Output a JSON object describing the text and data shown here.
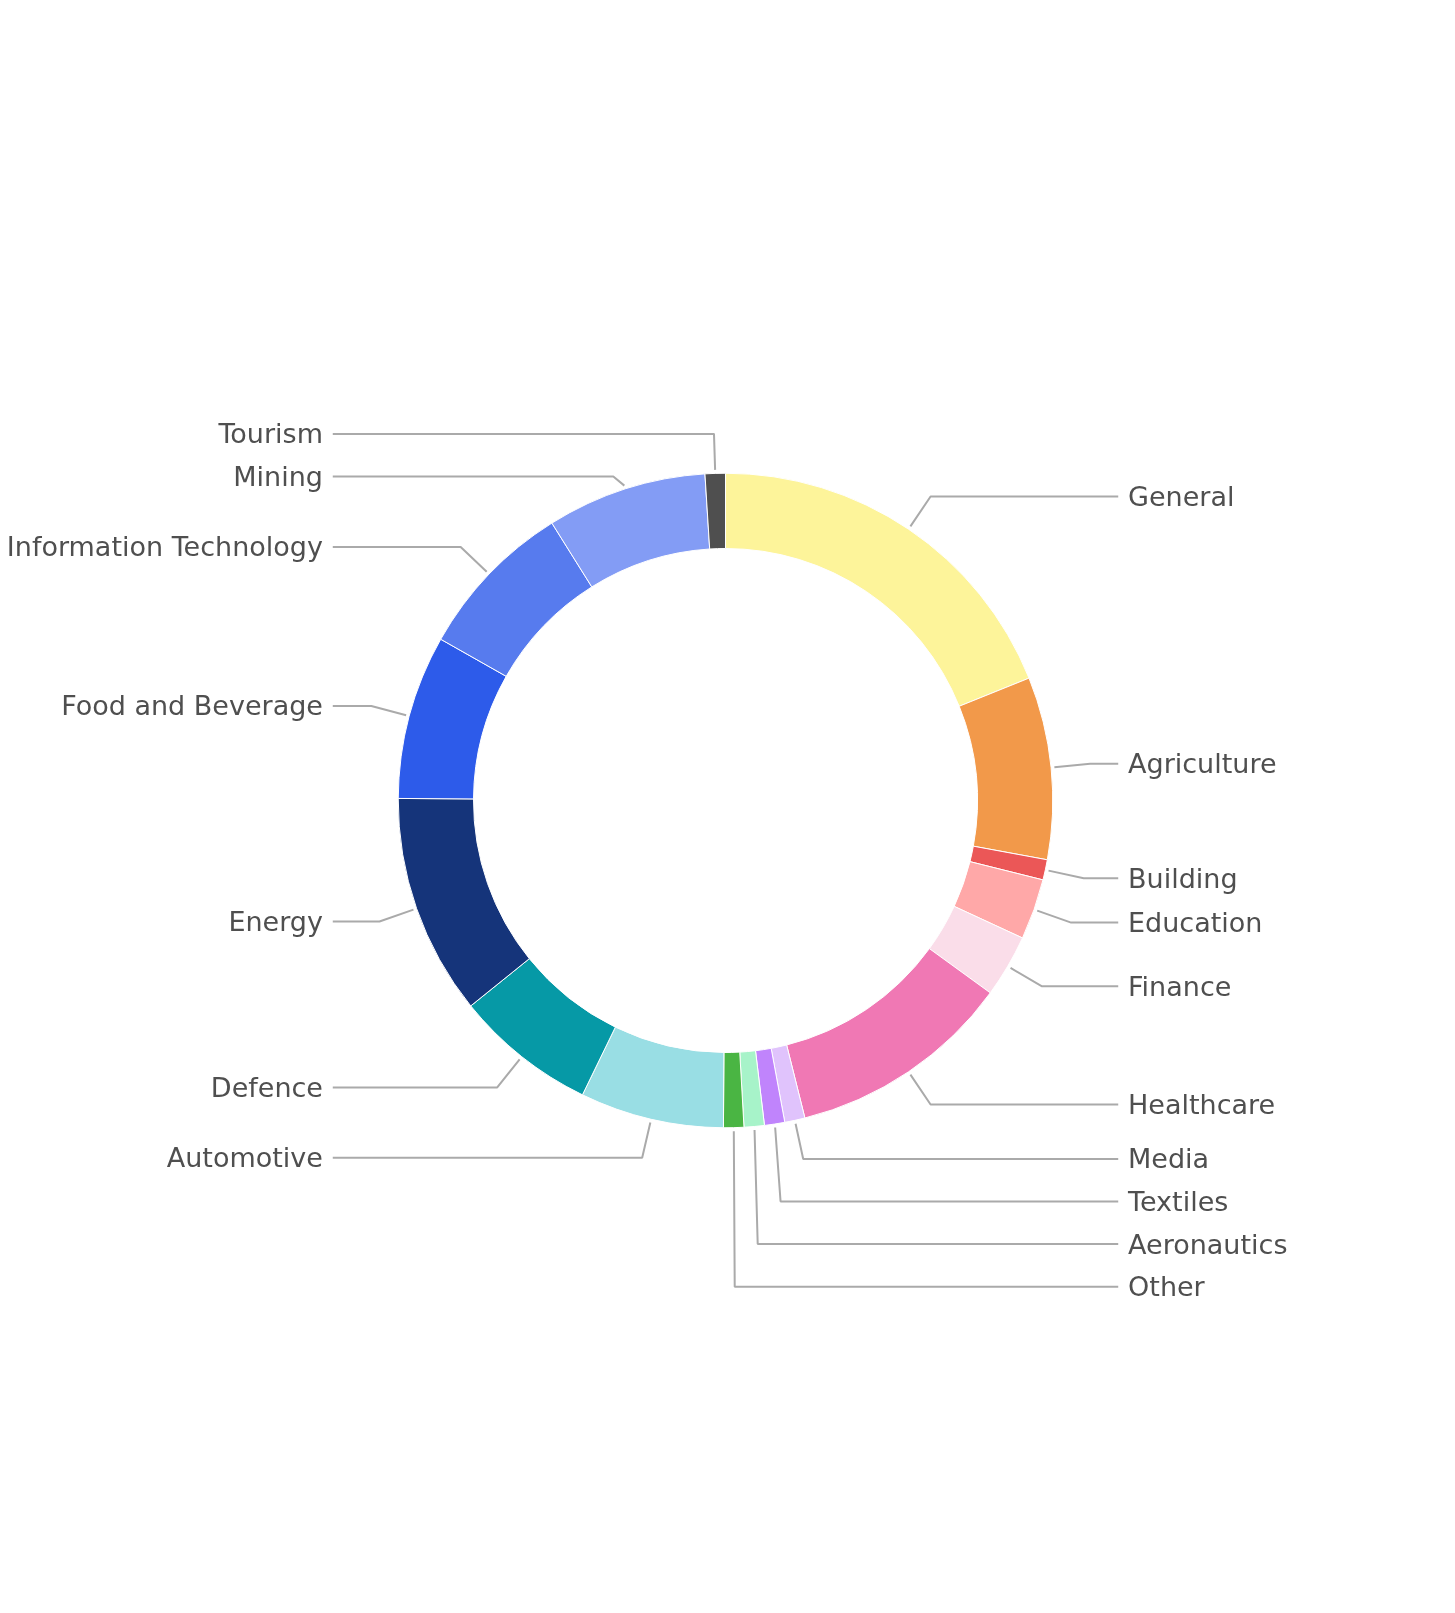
{
  "chart_data": {
    "type": "donut",
    "categories": [
      "General",
      "Agriculture",
      "Building",
      "Education",
      "Finance",
      "Healthcare",
      "Media",
      "Textiles",
      "Aeronautics",
      "Other",
      "Automotive",
      "Defence",
      "Energy",
      "Food and Beverage",
      "Information Technology",
      "Mining",
      "Tourism"
    ],
    "values": [
      18.9,
      9.0,
      1.0,
      3.0,
      3.1,
      11.1,
      1.0,
      1.0,
      1.0,
      1.0,
      7.1,
      7.0,
      10.9,
      8.1,
      7.9,
      7.9,
      1.0
    ],
    "colors": [
      "#fdf49a",
      "#f2994a",
      "#eb5757",
      "#ffa8a8",
      "#fadde9",
      "#f078b4",
      "#e0c3fc",
      "#c084fc",
      "#a7f3c9",
      "#4ab543",
      "#99dee4",
      "#0699a6",
      "#15347a",
      "#2d5bea",
      "#577bee",
      "#839cf5",
      "#4f4f4f"
    ]
  }
}
